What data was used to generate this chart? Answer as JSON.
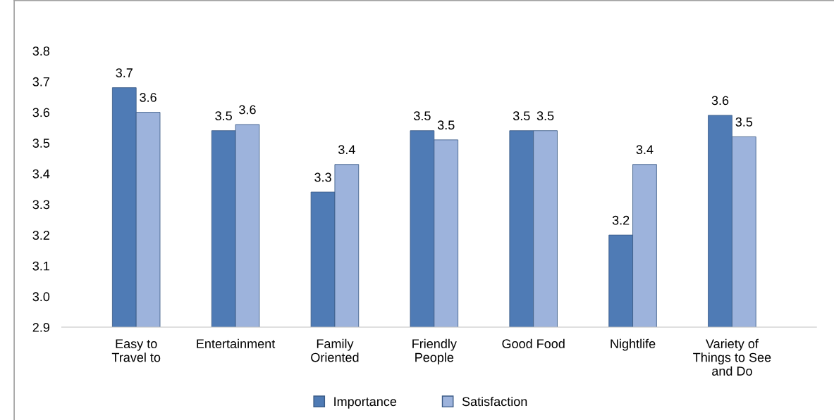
{
  "chart_data": {
    "type": "bar",
    "categories": [
      "Easy to\nTravel to",
      "Entertainment",
      "Family\nOriented",
      "Friendly\nPeople",
      "Good Food",
      "Nightlife",
      "Variety of\nThings to See\nand Do"
    ],
    "series": [
      {
        "name": "Importance",
        "color": "#4f7bb5",
        "values": [
          3.68,
          3.54,
          3.34,
          3.54,
          3.54,
          3.2,
          3.59
        ],
        "value_labels": [
          "3.7",
          "3.5",
          "3.3",
          "3.5",
          "3.5",
          "3.2",
          "3.6"
        ]
      },
      {
        "name": "Satisfaction",
        "color": "#9db3dc",
        "values": [
          3.6,
          3.56,
          3.43,
          3.51,
          3.54,
          3.43,
          3.52
        ],
        "value_labels": [
          "3.6",
          "3.6",
          "3.4",
          "3.5",
          "3.5",
          "3.4",
          "3.5"
        ]
      }
    ],
    "ylim": [
      2.9,
      3.8
    ],
    "yticks": [
      2.9,
      {
        "value": 3,
        "label": "3.0"
      },
      3.1,
      3.2,
      3.3,
      3.4,
      3.5,
      3.6,
      3.7,
      3.8
    ],
    "legend": "bottom",
    "marker": "square"
  }
}
